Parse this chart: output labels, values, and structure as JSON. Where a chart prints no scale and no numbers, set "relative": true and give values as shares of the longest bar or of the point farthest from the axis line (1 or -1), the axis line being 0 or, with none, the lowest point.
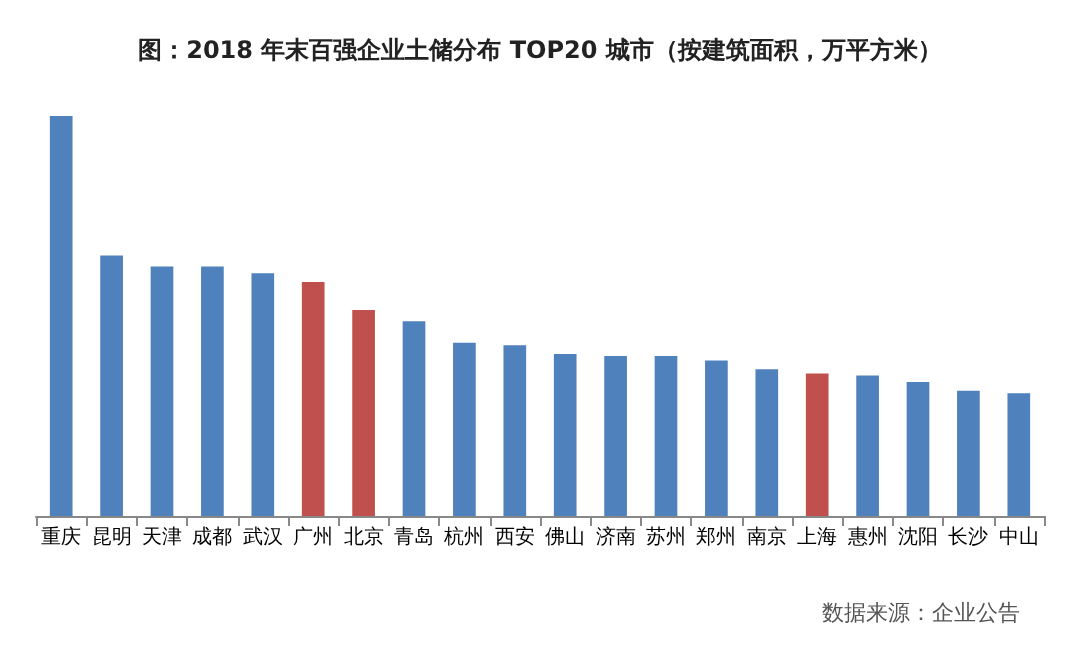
{
  "chart_data": {
    "type": "bar",
    "title": "图：2018 年末百强企业土储分布 TOP20 城市（按建筑面积，万平方米）",
    "categories": [
      "重庆",
      "昆明",
      "天津",
      "成都",
      "武汉",
      "广州",
      "北京",
      "青岛",
      "杭州",
      "西安",
      "佛山",
      "济南",
      "苏州",
      "郑州",
      "南京",
      "上海",
      "惠州",
      "沈阳",
      "长沙",
      "中山"
    ],
    "values": [
      1,
      0.651,
      0.624,
      0.624,
      0.607,
      0.585,
      0.515,
      0.487,
      0.433,
      0.427,
      0.405,
      0.4,
      0.4,
      0.389,
      0.367,
      0.356,
      0.351,
      0.335,
      0.313,
      0.307
    ],
    "colors": [
      "#4f81bd",
      "#4f81bd",
      "#4f81bd",
      "#4f81bd",
      "#4f81bd",
      "#c0504d",
      "#c0504d",
      "#4f81bd",
      "#4f81bd",
      "#4f81bd",
      "#4f81bd",
      "#4f81bd",
      "#4f81bd",
      "#4f81bd",
      "#4f81bd",
      "#c0504d",
      "#4f81bd",
      "#4f81bd",
      "#4f81bd",
      "#4f81bd"
    ],
    "relative": true,
    "annotations": [
      "数据来源：企业公告"
    ]
  }
}
